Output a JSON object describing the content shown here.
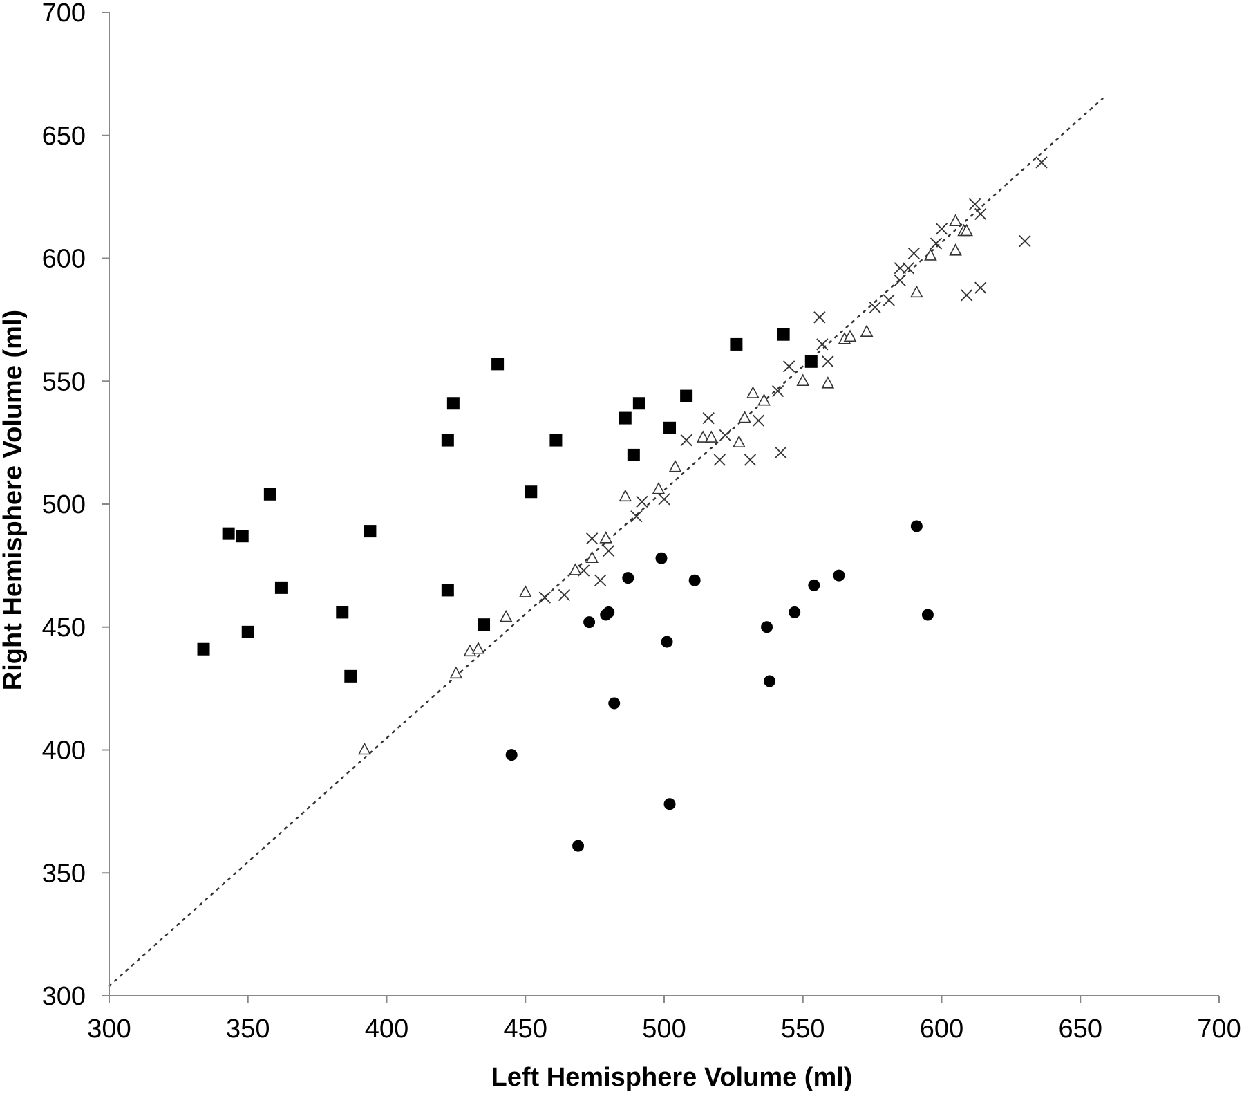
{
  "chart_data": {
    "type": "scatter",
    "title": "",
    "xlabel": "Left Hemisphere Volume (ml)",
    "ylabel": "Right Hemisphere Volume (ml)",
    "xlim": [
      300,
      700
    ],
    "ylim": [
      300,
      700
    ],
    "x_ticks": [
      "300",
      "350",
      "400",
      "450",
      "500",
      "550",
      "600",
      "650",
      "700"
    ],
    "y_ticks": [
      "300",
      "350",
      "400",
      "450",
      "500",
      "550",
      "600",
      "650",
      "700"
    ],
    "grid": false,
    "legend": "none",
    "reference_line": {
      "style": "dotted",
      "points": [
        [
          300,
          304
        ],
        [
          658,
          665
        ]
      ]
    },
    "series": [
      {
        "marker": "filled-square",
        "points": [
          [
            334,
            441
          ],
          [
            343,
            488
          ],
          [
            348,
            487
          ],
          [
            350,
            448
          ],
          [
            358,
            504
          ],
          [
            362,
            466
          ],
          [
            384,
            456
          ],
          [
            387,
            430
          ],
          [
            394,
            489
          ],
          [
            422,
            526
          ],
          [
            422,
            465
          ],
          [
            424,
            541
          ],
          [
            435,
            451
          ],
          [
            440,
            557
          ],
          [
            452,
            505
          ],
          [
            461,
            526
          ],
          [
            486,
            535
          ],
          [
            489,
            520
          ],
          [
            491,
            541
          ],
          [
            502,
            531
          ],
          [
            508,
            544
          ],
          [
            526,
            565
          ],
          [
            543,
            569
          ],
          [
            553,
            558
          ]
        ]
      },
      {
        "marker": "filled-circle",
        "points": [
          [
            445,
            398
          ],
          [
            469,
            361
          ],
          [
            473,
            452
          ],
          [
            479,
            455
          ],
          [
            480,
            456
          ],
          [
            482,
            419
          ],
          [
            487,
            470
          ],
          [
            499,
            478
          ],
          [
            501,
            444
          ],
          [
            502,
            378
          ],
          [
            511,
            469
          ],
          [
            537,
            450
          ],
          [
            538,
            428
          ],
          [
            547,
            456
          ],
          [
            554,
            467
          ],
          [
            563,
            471
          ],
          [
            591,
            491
          ],
          [
            595,
            455
          ]
        ]
      },
      {
        "marker": "open-triangle",
        "points": [
          [
            392,
            400
          ],
          [
            425,
            431
          ],
          [
            430,
            440
          ],
          [
            433,
            441
          ],
          [
            443,
            454
          ],
          [
            450,
            464
          ],
          [
            468,
            473
          ],
          [
            474,
            478
          ],
          [
            479,
            486
          ],
          [
            486,
            503
          ],
          [
            498,
            506
          ],
          [
            504,
            515
          ],
          [
            514,
            527
          ],
          [
            517,
            527
          ],
          [
            527,
            525
          ],
          [
            529,
            535
          ],
          [
            532,
            545
          ],
          [
            536,
            542
          ],
          [
            550,
            550
          ],
          [
            559,
            549
          ],
          [
            565,
            567
          ],
          [
            567,
            568
          ],
          [
            573,
            570
          ],
          [
            591,
            586
          ],
          [
            596,
            601
          ],
          [
            605,
            603
          ],
          [
            605,
            615
          ],
          [
            608,
            611
          ],
          [
            609,
            611
          ]
        ]
      },
      {
        "marker": "cross",
        "points": [
          [
            457,
            462
          ],
          [
            464,
            463
          ],
          [
            471,
            473
          ],
          [
            474,
            486
          ],
          [
            477,
            469
          ],
          [
            480,
            481
          ],
          [
            490,
            495
          ],
          [
            492,
            501
          ],
          [
            500,
            502
          ],
          [
            508,
            526
          ],
          [
            516,
            535
          ],
          [
            520,
            518
          ],
          [
            522,
            528
          ],
          [
            531,
            518
          ],
          [
            534,
            534
          ],
          [
            541,
            546
          ],
          [
            542,
            521
          ],
          [
            545,
            556
          ],
          [
            556,
            576
          ],
          [
            557,
            565
          ],
          [
            559,
            558
          ],
          [
            576,
            580
          ],
          [
            581,
            583
          ],
          [
            585,
            596
          ],
          [
            585,
            591
          ],
          [
            588,
            596
          ],
          [
            590,
            602
          ],
          [
            598,
            606
          ],
          [
            600,
            612
          ],
          [
            609,
            585
          ],
          [
            612,
            622
          ],
          [
            614,
            618
          ],
          [
            614,
            588
          ],
          [
            630,
            607
          ],
          [
            636,
            639
          ]
        ]
      }
    ]
  }
}
